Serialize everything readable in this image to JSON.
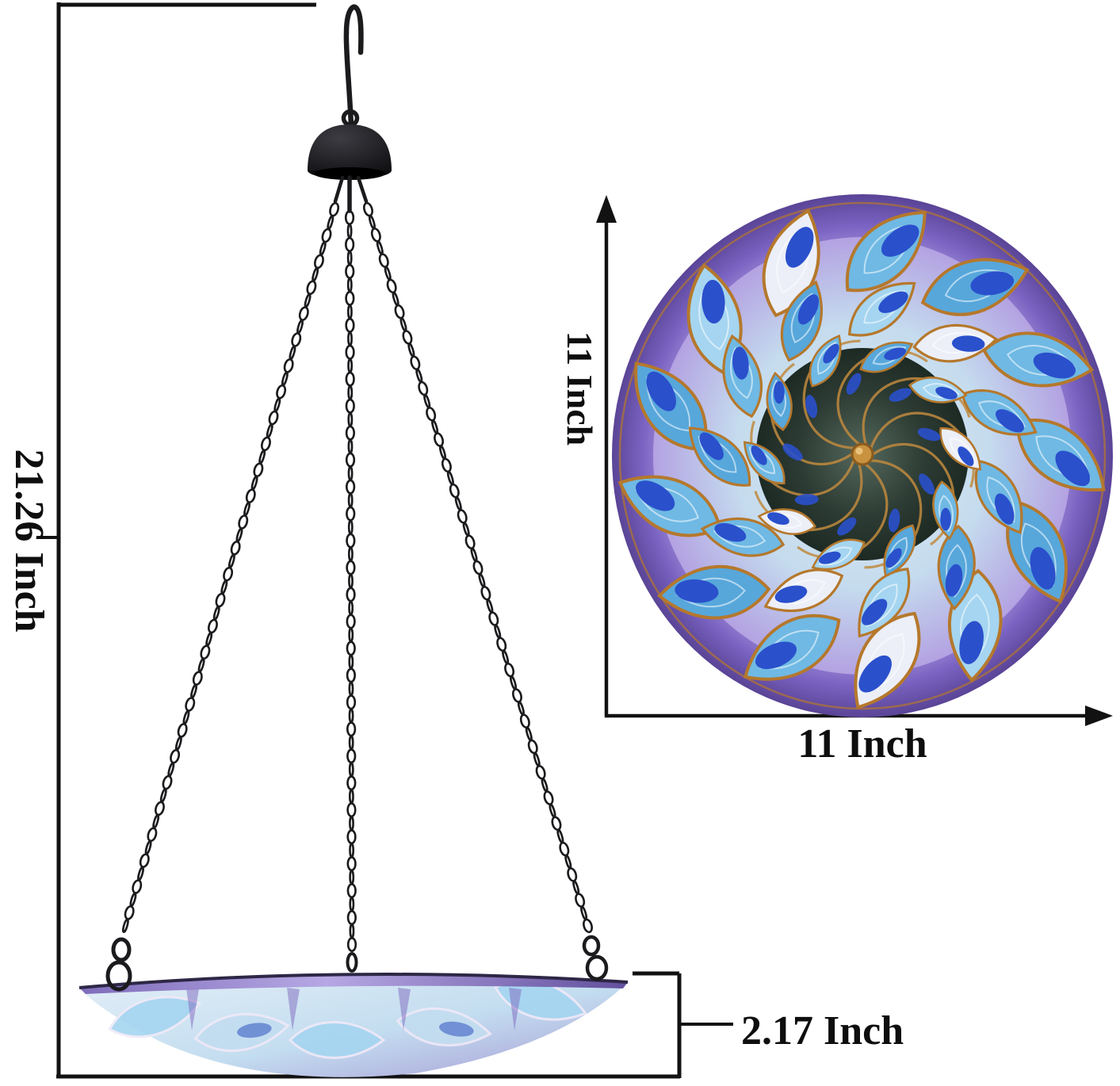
{
  "dimensions": {
    "overall_height_label": "21.26 Inch",
    "basin_depth_label": "2.17 Inch",
    "top_view_height_label": "11 Inch",
    "top_view_width_label": "11 Inch"
  },
  "colors": {
    "background": "#ffffff",
    "line": "#121212",
    "metal": "#1b1b1e",
    "gold": "#b5782c",
    "gold_dark": "#8a5a1e",
    "petal_blue": "#6fb9e4",
    "petal_blue_deep": "#57a7db",
    "petal_blue_light": "#a5d5f0",
    "petal_white": "#eceff8",
    "teardrop_blue": "#2a50cc",
    "purple_outer": "#7a63c2",
    "purple_deep": "#5a4496",
    "lavender": "#b3a2e2",
    "vortex_dark": "#2c3b33",
    "vortex_light": "#55685c",
    "side_light": "#e4eff7",
    "side_blue": "#c3ddf0",
    "side_purple": "#a79ad4",
    "rim_purple": "#7661b5"
  }
}
